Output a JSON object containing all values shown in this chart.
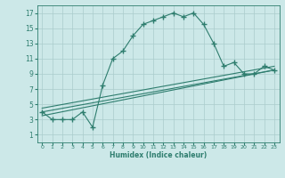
{
  "xlabel": "Humidex (Indice chaleur)",
  "bg_color": "#cce8e8",
  "grid_color": "#aacccc",
  "line_color": "#2e7d6e",
  "xlim": [
    -0.5,
    23.5
  ],
  "ylim": [
    0.0,
    18.0
  ],
  "xticks": [
    0,
    1,
    2,
    3,
    4,
    5,
    6,
    7,
    8,
    9,
    10,
    11,
    12,
    13,
    14,
    15,
    16,
    17,
    18,
    19,
    20,
    21,
    22,
    23
  ],
  "yticks": [
    1,
    3,
    5,
    7,
    9,
    11,
    13,
    15,
    17
  ],
  "main_x": [
    0,
    1,
    2,
    3,
    4,
    5,
    6,
    7,
    8,
    9,
    10,
    11,
    12,
    13,
    14,
    15,
    16,
    17,
    18,
    19,
    20,
    21,
    22,
    23
  ],
  "main_y": [
    4,
    3,
    3,
    3,
    4,
    2,
    7.5,
    11,
    12,
    14,
    15.5,
    16,
    16.5,
    17,
    16.5,
    17,
    15.5,
    13,
    10,
    10.5,
    9,
    9,
    10,
    9.5
  ],
  "line1_x": [
    0,
    23
  ],
  "line1_y": [
    3.5,
    9.5
  ],
  "line2_x": [
    0,
    23
  ],
  "line2_y": [
    4.0,
    9.5
  ],
  "line3_x": [
    0,
    23
  ],
  "line3_y": [
    4.5,
    10.0
  ]
}
